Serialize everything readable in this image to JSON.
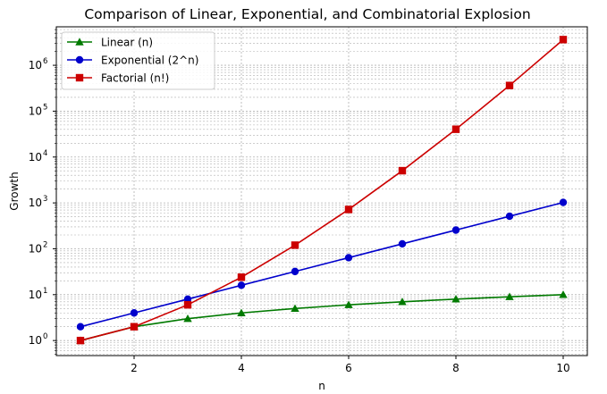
{
  "chart_data": {
    "type": "line",
    "title": "Comparison of Linear, Exponential, and Combinatorial Explosion",
    "xlabel": "n",
    "ylabel": "Growth",
    "yscale": "log",
    "x": [
      1,
      2,
      3,
      4,
      5,
      6,
      7,
      8,
      9,
      10
    ],
    "xlim": [
      0.55,
      10.45
    ],
    "ylim": [
      0.47,
      6900000
    ],
    "x_ticks": [
      2,
      4,
      6,
      8,
      10
    ],
    "x_tick_labels": [
      "2",
      "4",
      "6",
      "8",
      "10"
    ],
    "y_ticks": [
      1,
      10,
      100,
      1000,
      10000,
      100000,
      1000000
    ],
    "y_tick_labels": [
      {
        "base": "10",
        "exp": "0"
      },
      {
        "base": "10",
        "exp": "1"
      },
      {
        "base": "10",
        "exp": "2"
      },
      {
        "base": "10",
        "exp": "3"
      },
      {
        "base": "10",
        "exp": "4"
      },
      {
        "base": "10",
        "exp": "5"
      },
      {
        "base": "10",
        "exp": "6"
      }
    ],
    "grid": {
      "major": true,
      "minor": true,
      "style": "dashed",
      "color": "#b0b0b0"
    },
    "legend_position": "upper left",
    "series": [
      {
        "name": "Linear (n)",
        "color": "#007a00",
        "marker": "triangle",
        "values": [
          1,
          2,
          3,
          4,
          5,
          6,
          7,
          8,
          9,
          10
        ]
      },
      {
        "name": "Exponential (2^n)",
        "color": "#0000cc",
        "marker": "circle",
        "values": [
          2,
          4,
          8,
          16,
          32,
          64,
          128,
          256,
          512,
          1024
        ]
      },
      {
        "name": "Factorial (n!)",
        "color": "#cc0000",
        "marker": "square",
        "values": [
          1,
          2,
          6,
          24,
          120,
          720,
          5040,
          40320,
          362880,
          3628800
        ]
      }
    ]
  }
}
